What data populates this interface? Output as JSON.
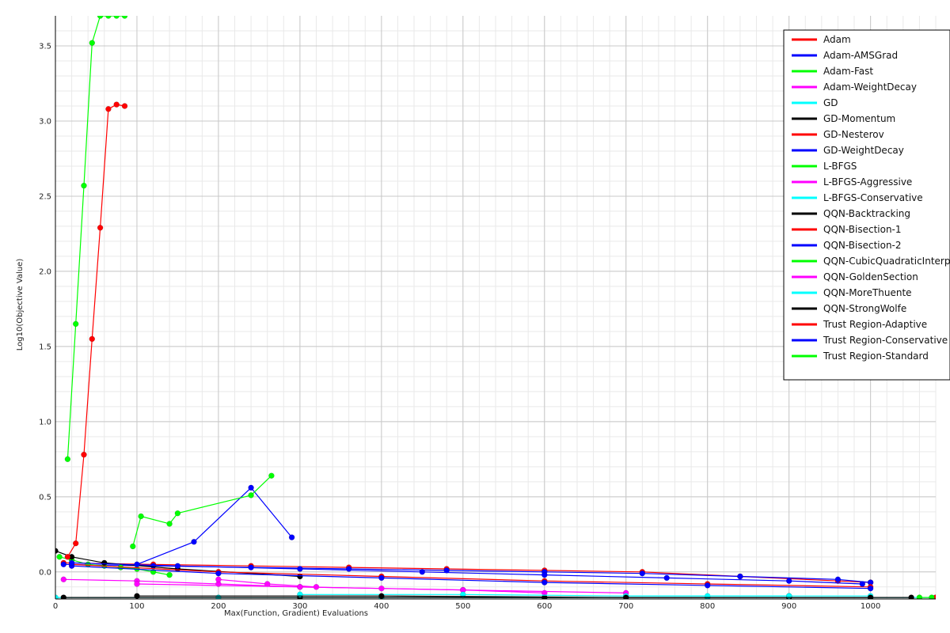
{
  "chart_data": {
    "type": "line",
    "title": "",
    "xlabel": "Max(Function, Gradient) Evaluations",
    "ylabel": "Log10(Objective Value)",
    "xlim": [
      0,
      1080
    ],
    "ylim": [
      -0.18,
      3.7
    ],
    "x_ticks": [
      0,
      100,
      200,
      300,
      400,
      500,
      600,
      700,
      800,
      900,
      1000
    ],
    "y_ticks": [
      0.0,
      0.5,
      1.0,
      1.5,
      2.0,
      2.5,
      3.0,
      3.5
    ],
    "grid": true,
    "legend_position": "top-right",
    "series": [
      {
        "name": "Adam",
        "color": "#ff0000",
        "x": [
          10,
          120,
          240,
          360,
          480,
          600,
          720,
          840,
          960,
          1000
        ],
        "y": [
          0.06,
          0.05,
          0.04,
          0.03,
          0.02,
          0.01,
          0.0,
          -0.03,
          -0.06,
          -0.07
        ]
      },
      {
        "name": "Adam-AMSGrad",
        "color": "#0000ff",
        "x": [
          10,
          120,
          240,
          360,
          480,
          600,
          720,
          840,
          960,
          1000
        ],
        "y": [
          0.05,
          0.04,
          0.03,
          0.02,
          0.01,
          0.0,
          -0.01,
          -0.03,
          -0.05,
          -0.07
        ]
      },
      {
        "name": "Adam-Fast",
        "color": "#00ff00",
        "x": [
          5,
          20,
          40,
          60,
          80,
          100,
          120,
          140
        ],
        "y": [
          0.1,
          0.08,
          0.05,
          0.04,
          0.03,
          0.02,
          0.0,
          -0.02
        ]
      },
      {
        "name": "Adam-WeightDecay",
        "color": "#ff00ff",
        "x": [
          10,
          100,
          200,
          300,
          400,
          500,
          600
        ],
        "y": [
          -0.05,
          -0.06,
          -0.08,
          -0.1,
          -0.11,
          -0.12,
          -0.14
        ]
      },
      {
        "name": "GD",
        "color": "#00ffff",
        "x": [
          0,
          200,
          400,
          600,
          800,
          1000,
          1080
        ],
        "y": [
          -0.17,
          -0.17,
          -0.17,
          -0.17,
          -0.17,
          -0.17,
          -0.17
        ]
      },
      {
        "name": "GD-Momentum",
        "color": "#000000",
        "x": [
          0,
          20,
          60,
          150,
          300
        ],
        "y": [
          0.14,
          0.1,
          0.06,
          0.02,
          -0.03
        ]
      },
      {
        "name": "GD-Nesterov",
        "color": "#ff0000",
        "x": [
          15,
          25,
          35,
          45,
          55,
          65,
          75,
          85
        ],
        "y": [
          0.1,
          0.19,
          0.78,
          1.55,
          2.29,
          3.08,
          3.11,
          3.1
        ]
      },
      {
        "name": "GD-WeightDecay",
        "color": "#0000ff",
        "x": [
          100,
          170,
          240,
          290
        ],
        "y": [
          0.05,
          0.2,
          0.56,
          0.23
        ]
      },
      {
        "name": "L-BFGS",
        "color": "#00ff00",
        "x": [
          15,
          25,
          35,
          45,
          55,
          65,
          75,
          85
        ],
        "y": [
          0.75,
          1.65,
          2.57,
          3.52,
          3.7,
          3.7,
          3.7,
          3.7
        ]
      },
      {
        "name": "L-BFGS-Aggressive",
        "color": "#ff00ff",
        "x": [
          200,
          260,
          320
        ],
        "y": [
          -0.05,
          -0.08,
          -0.1
        ]
      },
      {
        "name": "L-BFGS-Conservative",
        "color": "#00ffff",
        "x": [
          700,
          800,
          900,
          1000
        ],
        "y": [
          -0.16,
          -0.16,
          -0.16,
          -0.16
        ]
      },
      {
        "name": "QQN-Backtracking",
        "color": "#000000",
        "x": [
          10,
          300,
          600,
          900,
          1050
        ],
        "y": [
          -0.17,
          -0.17,
          -0.17,
          -0.17,
          -0.17
        ]
      },
      {
        "name": "QQN-Bisection-1",
        "color": "#ff0000",
        "x": [
          20,
          200,
          400,
          600,
          800,
          1000
        ],
        "y": [
          0.05,
          0.0,
          -0.03,
          -0.06,
          -0.08,
          -0.1
        ]
      },
      {
        "name": "QQN-Bisection-2",
        "color": "#0000ff",
        "x": [
          20,
          200,
          400,
          600,
          800,
          1000
        ],
        "y": [
          0.04,
          -0.01,
          -0.04,
          -0.07,
          -0.09,
          -0.11
        ]
      },
      {
        "name": "QQN-CubicQuadraticInterpolation",
        "color": "#00ff00",
        "x": [
          95,
          105,
          140,
          150,
          240,
          265
        ],
        "y": [
          0.17,
          0.37,
          0.32,
          0.39,
          0.51,
          0.64
        ]
      },
      {
        "name": "QQN-GoldenSection",
        "color": "#ff00ff",
        "x": [
          100,
          300,
          500,
          700
        ],
        "y": [
          -0.08,
          -0.1,
          -0.12,
          -0.14
        ]
      },
      {
        "name": "QQN-MoreThuente",
        "color": "#00ffff",
        "x": [
          300,
          500,
          700,
          900
        ],
        "y": [
          -0.15,
          -0.15,
          -0.16,
          -0.16
        ]
      },
      {
        "name": "QQN-StrongWolfe",
        "color": "#000000",
        "x": [
          100,
          400,
          700,
          1000
        ],
        "y": [
          -0.16,
          -0.16,
          -0.17,
          -0.17
        ]
      },
      {
        "name": "Trust Region-Adaptive",
        "color": "#ff0000",
        "x": [
          1080
        ],
        "y": [
          -0.17
        ]
      },
      {
        "name": "Trust Region-Conservative",
        "color": "#0000ff",
        "x": [
          20,
          150,
          300,
          450,
          600,
          750,
          900,
          990
        ],
        "y": [
          0.06,
          0.04,
          0.02,
          0.0,
          -0.02,
          -0.04,
          -0.06,
          -0.08
        ]
      },
      {
        "name": "Trust Region-Standard",
        "color": "#00ff00",
        "x": [
          1060,
          1075
        ],
        "y": [
          -0.17,
          -0.17
        ]
      }
    ]
  }
}
